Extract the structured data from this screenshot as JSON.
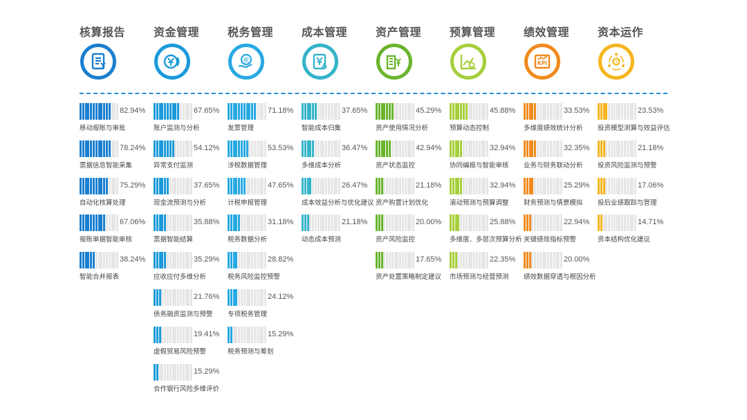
{
  "chart_data": {
    "type": "bar",
    "bar_style": "segmented horizontal progress bars",
    "segments_per_bar": 15,
    "columns": [
      {
        "title": "核算报告",
        "icon": "voucher-icon",
        "color": "#1a7fd0",
        "items": [
          {
            "label": "移动报账与审批",
            "value": 82.94,
            "value_text": "82.94%"
          },
          {
            "label": "票据信息智能采集",
            "value": 78.24,
            "value_text": "78.24%"
          },
          {
            "label": "自动化核算处理",
            "value": 75.29,
            "value_text": "75.29%"
          },
          {
            "label": "报账单据智能审核",
            "value": 67.06,
            "value_text": "67.06%"
          },
          {
            "label": "智能合并报表",
            "value": 38.24,
            "value_text": "38.24%"
          }
        ]
      },
      {
        "title": "资金管理",
        "icon": "yuan-coin-icon",
        "color": "#1b9ad9",
        "items": [
          {
            "label": "账户监测与分析",
            "value": 67.65,
            "value_text": "67.65%"
          },
          {
            "label": "异常支付监测",
            "value": 54.12,
            "value_text": "54.12%"
          },
          {
            "label": "现金流预测与分析",
            "value": 37.65,
            "value_text": "37.65%"
          },
          {
            "label": "票据智能结算",
            "value": 35.88,
            "value_text": "35.88%"
          },
          {
            "label": "应收应付多维分析",
            "value": 35.29,
            "value_text": "35.29%"
          },
          {
            "label": "债务融资监测与预警",
            "value": 21.76,
            "value_text": "21.76%"
          },
          {
            "label": "虚假贸易风险预警",
            "value": 19.41,
            "value_text": "19.41%"
          },
          {
            "label": "合作银行风险多维评价",
            "value": 15.29,
            "value_text": "15.29%"
          }
        ]
      },
      {
        "title": "税务管理",
        "icon": "tax-hand-icon",
        "color": "#27a9e1",
        "items": [
          {
            "label": "发票管理",
            "value": 71.18,
            "value_text": "71.18%"
          },
          {
            "label": "涉税数据管理",
            "value": 53.53,
            "value_text": "53.53%"
          },
          {
            "label": "计税申报管理",
            "value": 47.65,
            "value_text": "47.65%"
          },
          {
            "label": "税务数据分析",
            "value": 31.18,
            "value_text": "31.18%"
          },
          {
            "label": "税务风险监控预警",
            "value": 28.82,
            "value_text": "28.82%"
          },
          {
            "label": "专项税务管理",
            "value": 24.12,
            "value_text": "24.12%"
          },
          {
            "label": "税务预测与筹划",
            "value": 15.29,
            "value_text": "15.29%"
          }
        ]
      },
      {
        "title": "成本管理",
        "icon": "cost-chart-icon",
        "color": "#35b3c9",
        "items": [
          {
            "label": "智能成本归集",
            "value": 37.65,
            "value_text": "37.65%"
          },
          {
            "label": "多维成本分析",
            "value": 36.47,
            "value_text": "36.47%"
          },
          {
            "label": "成本效益分析与优化建议",
            "value": 26.47,
            "value_text": "26.47%"
          },
          {
            "label": "动态成本预测",
            "value": 21.18,
            "value_text": "21.18%"
          }
        ]
      },
      {
        "title": "资产管理",
        "icon": "asset-building-icon",
        "color": "#6ab42d",
        "items": [
          {
            "label": "资产使用情况分析",
            "value": 45.29,
            "value_text": "45.29%"
          },
          {
            "label": "资产状态监控",
            "value": 42.94,
            "value_text": "42.94%"
          },
          {
            "label": "资产购置计划优化",
            "value": 21.18,
            "value_text": "21.18%"
          },
          {
            "label": "资产风险监控",
            "value": 20.0,
            "value_text": "20.00%"
          },
          {
            "label": "资产处置策略制定建议",
            "value": 17.65,
            "value_text": "17.65%"
          }
        ]
      },
      {
        "title": "预算管理",
        "icon": "budget-trend-icon",
        "color": "#a6cf3c",
        "items": [
          {
            "label": "预算动态控制",
            "value": 45.88,
            "value_text": "45.88%"
          },
          {
            "label": "协同编报与智能审核",
            "value": 32.94,
            "value_text": "32.94%"
          },
          {
            "label": "滚动预测与预算调整",
            "value": 32.94,
            "value_text": "32.94%"
          },
          {
            "label": "多维度、多层次预算分析",
            "value": 25.88,
            "value_text": "25.88%"
          },
          {
            "label": "市场预测与经营预测",
            "value": 22.35,
            "value_text": "22.35%"
          }
        ]
      },
      {
        "title": "绩效管理",
        "icon": "kpi-icon",
        "color": "#f08a1c",
        "items": [
          {
            "label": "多维度绩效统计分析",
            "value": 33.53,
            "value_text": "33.53%"
          },
          {
            "label": "业务与财务联动分析",
            "value": 32.35,
            "value_text": "32.35%"
          },
          {
            "label": "财务预测与情景模拟",
            "value": 25.29,
            "value_text": "25.29%"
          },
          {
            "label": "关键绩效指标预警",
            "value": 22.94,
            "value_text": "22.94%"
          },
          {
            "label": "绩效数据穿透与根因分析",
            "value": 20.0,
            "value_text": "20.00%"
          }
        ]
      },
      {
        "title": "资本运作",
        "icon": "capital-cycle-icon",
        "color": "#f6b51e",
        "items": [
          {
            "label": "投资模型测算与效益评估",
            "value": 23.53,
            "value_text": "23.53%"
          },
          {
            "label": "投资风险监测与预警",
            "value": 21.18,
            "value_text": "21.18%"
          },
          {
            "label": "投后业绩跟踪与管理",
            "value": 17.06,
            "value_text": "17.06%"
          },
          {
            "label": "资本结构优化建议",
            "value": 14.71,
            "value_text": "14.71%"
          }
        ]
      }
    ],
    "track_color": "#e6e6e6",
    "divider_color": "#1a8fd8"
  }
}
